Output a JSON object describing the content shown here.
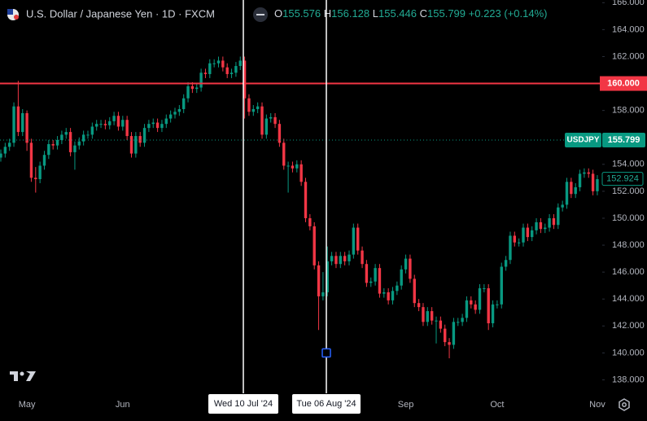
{
  "chart_data": {
    "type": "candlestick",
    "title": "U.S. Dollar / Japanese Yen · 1D · FXCM",
    "legend": {
      "letters": [
        "O",
        "H",
        "L",
        "C"
      ],
      "open": 155.576,
      "high": 156.128,
      "low": 155.446,
      "close": 155.799,
      "change": {
        "value": 0.223,
        "label": "+0.223"
      },
      "change_pct": {
        "value": 0.14,
        "label": "(+0.14%)"
      }
    },
    "up_color": "#089981",
    "down_color": "#f23645",
    "categories": [
      null,
      null,
      null,
      null,
      null,
      null,
      "May",
      null,
      null,
      null,
      null,
      null,
      null,
      null,
      null,
      null,
      null,
      null,
      null,
      null,
      null,
      null,
      null,
      null,
      null,
      null,
      null,
      null,
      "Jun",
      null,
      null,
      null,
      null,
      null,
      null,
      null,
      null,
      null,
      null,
      null,
      null,
      null,
      null,
      null,
      null,
      null,
      null,
      null,
      null,
      null,
      null,
      null,
      null,
      null,
      null,
      null,
      null,
      null,
      null,
      null,
      null,
      null,
      null,
      null,
      null,
      null,
      null,
      null,
      null,
      null,
      null,
      null,
      null,
      null,
      null,
      null,
      null,
      null,
      null,
      null,
      null,
      null,
      null,
      null,
      null,
      null,
      null,
      null,
      null,
      null,
      null,
      null,
      null,
      "Sep",
      null,
      null,
      null,
      null,
      null,
      null,
      null,
      null,
      null,
      null,
      null,
      null,
      null,
      null,
      null,
      null,
      null,
      null,
      null,
      null,
      "Oct",
      null,
      null,
      null,
      null,
      null,
      null,
      null,
      null,
      null,
      null,
      null,
      null,
      null,
      null,
      null,
      null,
      null,
      null,
      null,
      null,
      null,
      null,
      "Nov"
    ],
    "open": [
      154.5,
      154.8,
      155.3,
      155.6,
      158.3,
      156.4,
      157.8,
      155.6,
      153.0,
      152.9,
      153.9,
      154.7,
      155.5,
      155.4,
      155.8,
      156.2,
      156.4,
      154.9,
      155.4,
      155.7,
      156.2,
      156.2,
      156.8,
      157.0,
      157.0,
      156.9,
      157.2,
      157.6,
      156.8,
      157.3,
      156.1,
      154.8,
      156.1,
      155.6,
      156.7,
      157.0,
      157.1,
      156.7,
      157.0,
      157.4,
      157.7,
      157.9,
      158.1,
      158.9,
      159.8,
      159.6,
      159.7,
      160.8,
      160.7,
      161.5,
      161.5,
      161.7,
      161.2,
      160.7,
      160.8,
      161.3,
      161.7,
      158.9,
      157.9,
      158.1,
      158.3,
      156.2,
      157.4,
      157.5,
      157.0,
      155.6,
      153.9,
      153.9,
      153.7,
      154.0,
      152.7,
      150.0,
      149.4,
      146.5,
      144.2,
      144.5,
      146.8,
      147.2,
      146.6,
      147.2,
      146.8,
      147.3,
      149.3,
      147.6,
      146.6,
      145.2,
      145.3,
      146.3,
      144.4,
      144.5,
      143.9,
      144.6,
      145.0,
      146.2,
      147.0,
      145.5,
      143.7,
      143.4,
      142.3,
      143.1,
      142.4,
      142.4,
      141.8,
      140.8,
      140.6,
      142.3,
      142.3,
      142.6,
      143.9,
      143.6,
      143.2,
      144.8,
      144.8,
      142.2,
      143.6,
      143.6,
      146.4,
      146.9,
      148.7,
      148.2,
      148.2,
      149.3,
      148.6,
      149.1,
      149.7,
      149.2,
      149.3,
      150.0,
      149.5,
      150.8,
      151.0,
      152.7,
      151.8,
      152.3,
      153.3,
      153.4,
      153.3,
      152.0
    ],
    "high": [
      155.1,
      155.6,
      155.9,
      158.6,
      160.2,
      158.1,
      158.0,
      155.9,
      153.8,
      154.2,
      155.0,
      155.8,
      155.8,
      156.1,
      156.5,
      156.7,
      156.7,
      155.7,
      156.0,
      156.5,
      156.5,
      157.1,
      157.3,
      157.3,
      157.3,
      157.5,
      157.9,
      157.9,
      157.6,
      157.6,
      156.4,
      156.4,
      156.4,
      157.0,
      157.3,
      157.4,
      157.4,
      157.3,
      157.7,
      158.0,
      158.2,
      158.4,
      159.2,
      160.1,
      160.1,
      160.0,
      161.1,
      161.1,
      161.8,
      161.8,
      162.0,
      162.0,
      161.5,
      161.1,
      161.6,
      162.0,
      162.0,
      159.2,
      158.4,
      158.6,
      158.6,
      157.7,
      157.8,
      157.8,
      157.3,
      155.9,
      154.2,
      154.2,
      154.3,
      154.3,
      153.0,
      150.3,
      149.7,
      146.8,
      146.0,
      147.9,
      147.5,
      147.5,
      147.5,
      147.5,
      147.6,
      149.6,
      149.6,
      147.9,
      146.9,
      145.6,
      146.6,
      146.6,
      144.8,
      144.8,
      144.9,
      145.3,
      146.5,
      147.3,
      147.3,
      145.8,
      144.0,
      143.7,
      143.4,
      143.4,
      142.7,
      142.7,
      142.1,
      141.1,
      142.6,
      142.6,
      142.9,
      144.2,
      144.2,
      143.9,
      145.1,
      145.1,
      145.1,
      143.9,
      143.9,
      146.7,
      147.2,
      149.0,
      149.0,
      148.5,
      149.6,
      149.6,
      149.4,
      150.0,
      150.0,
      149.6,
      150.3,
      150.3,
      151.1,
      151.3,
      153.0,
      153.0,
      152.6,
      153.6,
      153.7,
      153.7,
      153.6,
      153.2
    ],
    "low": [
      154.2,
      154.5,
      155.0,
      155.3,
      156.1,
      156.1,
      155.0,
      152.7,
      151.9,
      152.6,
      153.6,
      154.4,
      155.1,
      155.1,
      155.5,
      155.9,
      154.6,
      153.6,
      155.1,
      155.4,
      155.9,
      155.9,
      156.5,
      156.7,
      156.6,
      156.6,
      156.9,
      156.5,
      156.5,
      155.8,
      154.5,
      154.5,
      155.3,
      155.3,
      156.4,
      156.7,
      156.4,
      156.4,
      156.7,
      157.1,
      157.4,
      157.6,
      157.8,
      158.6,
      159.3,
      159.3,
      159.4,
      160.4,
      160.4,
      161.2,
      161.2,
      160.9,
      160.4,
      160.4,
      160.5,
      161.0,
      157.4,
      157.6,
      157.6,
      157.8,
      155.9,
      155.9,
      157.1,
      156.7,
      155.3,
      153.6,
      151.9,
      153.4,
      153.4,
      152.4,
      149.7,
      149.1,
      146.2,
      141.7,
      143.9,
      144.2,
      146.5,
      146.3,
      146.3,
      146.5,
      146.5,
      147.0,
      147.3,
      146.3,
      144.9,
      144.9,
      145.0,
      144.1,
      144.1,
      143.6,
      143.6,
      144.3,
      144.7,
      145.9,
      145.2,
      143.4,
      143.1,
      142.0,
      142.0,
      142.1,
      140.7,
      141.5,
      140.5,
      139.6,
      140.3,
      142.0,
      142.0,
      142.3,
      143.3,
      142.9,
      142.9,
      144.5,
      141.7,
      141.9,
      143.3,
      143.3,
      146.1,
      146.6,
      147.9,
      147.9,
      147.9,
      148.3,
      148.3,
      148.8,
      148.9,
      148.9,
      149.0,
      149.2,
      149.2,
      150.5,
      150.7,
      151.5,
      151.5,
      152.0,
      153.0,
      153.0,
      151.7,
      151.7
    ],
    "close": [
      154.8,
      155.3,
      155.6,
      158.3,
      156.4,
      157.8,
      155.6,
      153.0,
      152.9,
      153.9,
      154.7,
      155.5,
      155.4,
      155.8,
      156.2,
      156.4,
      154.9,
      155.4,
      155.7,
      156.2,
      156.2,
      156.8,
      157.0,
      157.0,
      156.9,
      157.2,
      157.6,
      156.8,
      157.3,
      156.1,
      154.8,
      156.1,
      155.6,
      156.7,
      157.0,
      157.1,
      156.7,
      157.0,
      157.4,
      157.7,
      157.9,
      158.1,
      158.9,
      159.8,
      159.6,
      159.7,
      160.8,
      160.7,
      161.5,
      161.5,
      161.7,
      161.2,
      160.7,
      160.8,
      161.3,
      161.7,
      158.9,
      157.9,
      158.1,
      158.3,
      156.2,
      157.4,
      157.5,
      157.0,
      155.6,
      153.9,
      153.9,
      153.7,
      154.0,
      152.7,
      150.0,
      149.4,
      146.5,
      144.2,
      144.5,
      146.8,
      147.2,
      146.6,
      147.2,
      146.8,
      147.3,
      149.3,
      147.6,
      146.6,
      145.2,
      145.3,
      146.3,
      144.4,
      144.5,
      143.9,
      144.6,
      145.0,
      146.2,
      147.0,
      145.5,
      143.7,
      143.4,
      142.3,
      143.1,
      142.4,
      142.4,
      141.8,
      140.8,
      140.6,
      142.3,
      142.3,
      142.6,
      143.9,
      143.6,
      143.2,
      144.8,
      144.8,
      142.2,
      143.6,
      143.6,
      146.4,
      146.9,
      148.7,
      148.2,
      148.2,
      149.3,
      148.6,
      149.1,
      149.7,
      149.2,
      149.3,
      150.0,
      149.5,
      150.8,
      151.0,
      152.7,
      151.8,
      152.3,
      153.3,
      153.4,
      153.3,
      152.0,
      152.9
    ],
    "ylim": [
      137,
      166.2
    ],
    "yticks": [
      {
        "value": 138,
        "label": "138.000"
      },
      {
        "value": 140,
        "label": "140.000"
      },
      {
        "value": 142,
        "label": "142.000"
      },
      {
        "value": 144,
        "label": "144.000"
      },
      {
        "value": 146,
        "label": "146.000"
      },
      {
        "value": 148,
        "label": "148.000"
      },
      {
        "value": 150,
        "label": "150.000"
      },
      {
        "value": 152,
        "label": "152.000"
      },
      {
        "value": 154,
        "label": "154.000"
      },
      {
        "value": 158,
        "label": "158.000"
      },
      {
        "value": 162,
        "label": "162.000"
      },
      {
        "value": 164,
        "label": "164.000"
      },
      {
        "value": 166,
        "label": "166.000"
      }
    ],
    "grid": false,
    "hline": {
      "value": 160,
      "label": "160.000",
      "color": "#f23645"
    },
    "last_price": {
      "symbol": "USDJPY",
      "value": 155.799,
      "label": "155.799",
      "color": "#089981"
    },
    "current_price": {
      "value": 152.924,
      "label": "152.924"
    },
    "anchor": {
      "value": 140,
      "color": "#2962ff"
    },
    "crosshairs": [
      "Wed 10 Jul '24",
      "Tue 06 Aug '24"
    ]
  }
}
